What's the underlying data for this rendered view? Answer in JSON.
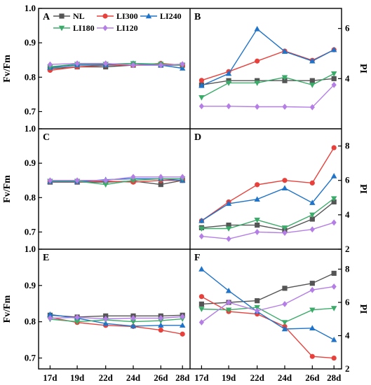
{
  "chart_data": [
    {
      "panel": "A",
      "type": "line",
      "ylabel": "Fv/Fm",
      "ylim": [
        0.65,
        1.0
      ],
      "yticks": [
        "0.7",
        "0.8",
        "0.9",
        "1.0"
      ],
      "categories": [
        "17d",
        "19d",
        "22d",
        "24d",
        "26d",
        "28d"
      ],
      "series": [
        {
          "name": "NL",
          "values": [
            0.825,
            0.83,
            0.83,
            0.835,
            0.835,
            0.835
          ]
        },
        {
          "name": "LI300",
          "values": [
            0.82,
            0.83,
            0.835,
            0.835,
            0.84,
            0.835
          ]
        },
        {
          "name": "LI240",
          "values": [
            0.828,
            0.835,
            0.836,
            0.84,
            0.835,
            0.826
          ]
        },
        {
          "name": "LI180",
          "values": [
            0.83,
            0.838,
            0.838,
            0.84,
            0.838,
            0.835
          ]
        },
        {
          "name": "LI120",
          "values": [
            0.837,
            0.84,
            0.84,
            0.835,
            0.835,
            0.838
          ]
        }
      ]
    },
    {
      "panel": "B",
      "type": "line",
      "ylabel": "PI",
      "ylim": [
        2,
        6.8
      ],
      "yticks": [
        "4",
        "6"
      ],
      "categories": [
        "17d",
        "19d",
        "22d",
        "24d",
        "26d",
        "28d"
      ],
      "series": [
        {
          "name": "NL",
          "values": [
            3.75,
            3.92,
            3.92,
            3.92,
            3.92,
            4.0
          ]
        },
        {
          "name": "LI300",
          "values": [
            3.93,
            4.28,
            4.7,
            5.1,
            4.73,
            5.15
          ]
        },
        {
          "name": "LI240",
          "values": [
            3.72,
            4.2,
            5.98,
            5.08,
            4.7,
            5.15
          ]
        },
        {
          "name": "LI180",
          "values": [
            3.25,
            3.83,
            3.83,
            4.05,
            3.75,
            4.2
          ]
        },
        {
          "name": "LI120",
          "values": [
            2.9,
            2.9,
            2.88,
            2.88,
            2.86,
            3.75
          ]
        }
      ]
    },
    {
      "panel": "C",
      "type": "line",
      "ylabel": "Fv/Fm",
      "ylim": [
        0.65,
        1.0
      ],
      "yticks": [
        "0.7",
        "0.8",
        "0.9",
        "1.0"
      ],
      "categories": [
        "17d",
        "19d",
        "22d",
        "24d",
        "26d",
        "28d"
      ],
      "series": [
        {
          "name": "NL",
          "values": [
            0.845,
            0.845,
            0.845,
            0.848,
            0.838,
            0.85
          ]
        },
        {
          "name": "LI300",
          "values": [
            0.845,
            0.845,
            0.848,
            0.845,
            0.85,
            0.85
          ]
        },
        {
          "name": "LI240",
          "values": [
            0.846,
            0.846,
            0.852,
            0.855,
            0.855,
            0.85
          ]
        },
        {
          "name": "LI180",
          "values": [
            0.848,
            0.848,
            0.838,
            0.85,
            0.855,
            0.855
          ]
        },
        {
          "name": "LI120",
          "values": [
            0.85,
            0.85,
            0.85,
            0.86,
            0.86,
            0.86
          ]
        }
      ]
    },
    {
      "panel": "D",
      "type": "line",
      "ylabel": "PI",
      "ylim": [
        2,
        9
      ],
      "yticks": [
        "2",
        "4",
        "6",
        "8"
      ],
      "categories": [
        "17d",
        "19d",
        "22d",
        "24d",
        "26d",
        "28d"
      ],
      "series": [
        {
          "name": "NL",
          "values": [
            3.25,
            3.4,
            3.4,
            3.1,
            3.75,
            4.75
          ]
        },
        {
          "name": "LI300",
          "values": [
            3.65,
            4.75,
            5.75,
            6.0,
            5.85,
            7.9
          ]
        },
        {
          "name": "LI240",
          "values": [
            3.65,
            4.65,
            4.9,
            5.55,
            4.7,
            6.25
          ]
        },
        {
          "name": "LI180",
          "values": [
            3.2,
            3.2,
            3.7,
            3.25,
            4.0,
            4.95
          ]
        },
        {
          "name": "LI120",
          "values": [
            2.75,
            2.6,
            3.0,
            2.95,
            3.15,
            3.55
          ]
        }
      ]
    },
    {
      "panel": "E",
      "type": "line",
      "ylabel": "Fv/Fm",
      "ylim": [
        0.67,
        1.0
      ],
      "yticks": [
        "0.7",
        "0.8",
        "0.9",
        "1.0"
      ],
      "categories": [
        "17d",
        "19d",
        "22d",
        "24d",
        "26d",
        "28d"
      ],
      "series": [
        {
          "name": "NL",
          "values": [
            0.818,
            0.813,
            0.816,
            0.816,
            0.816,
            0.818
          ]
        },
        {
          "name": "LI300",
          "values": [
            0.812,
            0.798,
            0.79,
            0.787,
            0.777,
            0.766
          ]
        },
        {
          "name": "LI240",
          "values": [
            0.82,
            0.81,
            0.795,
            0.788,
            0.79,
            0.79
          ]
        },
        {
          "name": "LI180",
          "values": [
            0.807,
            0.8,
            0.805,
            0.8,
            0.803,
            0.808
          ]
        },
        {
          "name": "LI120",
          "values": [
            0.81,
            0.812,
            0.808,
            0.81,
            0.81,
            0.814
          ]
        }
      ]
    },
    {
      "panel": "F",
      "type": "line",
      "ylabel": "PI",
      "ylim": [
        2,
        9.2
      ],
      "yticks": [
        "2",
        "4",
        "6",
        "8"
      ],
      "categories": [
        "17d",
        "19d",
        "22d",
        "24d",
        "26d",
        "28d"
      ],
      "series": [
        {
          "name": "NL",
          "values": [
            5.9,
            6.0,
            6.1,
            6.85,
            7.15,
            7.75
          ]
        },
        {
          "name": "LI300",
          "values": [
            6.35,
            5.45,
            5.3,
            4.55,
            2.75,
            2.65
          ]
        },
        {
          "name": "LI240",
          "values": [
            8.0,
            6.7,
            5.45,
            4.4,
            4.45,
            3.75
          ]
        },
        {
          "name": "LI180",
          "values": [
            5.6,
            5.55,
            5.7,
            4.8,
            5.55,
            5.65
          ]
        },
        {
          "name": "LI120",
          "values": [
            4.8,
            6.0,
            5.5,
            5.9,
            6.75,
            6.95
          ]
        }
      ]
    }
  ],
  "legend": [
    {
      "name": "NL",
      "color": "#555555",
      "marker": "square"
    },
    {
      "name": "LI300",
      "color": "#e8413c",
      "marker": "circle"
    },
    {
      "name": "LI240",
      "color": "#1f73c8",
      "marker": "triangle-up"
    },
    {
      "name": "LI180",
      "color": "#3bab6a",
      "marker": "triangle-down"
    },
    {
      "name": "LI120",
      "color": "#b57ee6",
      "marker": "diamond"
    }
  ],
  "x_tick_labels": [
    "17d",
    "19d",
    "22d",
    "24d",
    "26d",
    "28d"
  ]
}
